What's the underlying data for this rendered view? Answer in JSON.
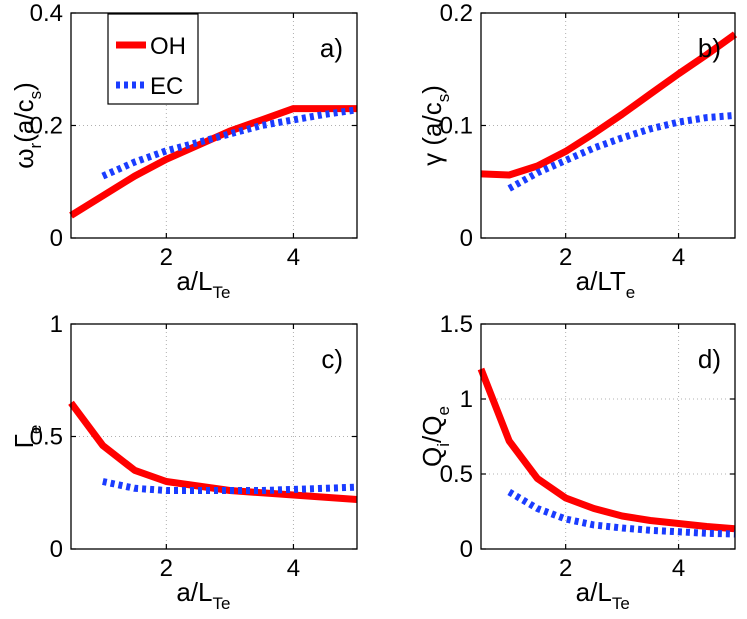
{
  "colors": {
    "OH": "#ff0000",
    "EC": "#1a3cff",
    "grid": "#b0b0b0"
  },
  "legend": {
    "entries": [
      "OH",
      "EC"
    ]
  },
  "chart_data": [
    {
      "type": "line",
      "panel": "a)",
      "xlabel": {
        "main": "a/L",
        "sub": "Te"
      },
      "ylabel": {
        "main": "ω",
        "sub": "r",
        "rest": "(a/c",
        "sub2": "s",
        "end": ")"
      },
      "xlim": [
        0.5,
        5
      ],
      "ylim": [
        0,
        0.4
      ],
      "xticks": [
        2,
        4
      ],
      "yticks": [
        0,
        0.2,
        0.4
      ],
      "xtick_labels": [
        "2",
        "4"
      ],
      "ytick_labels": [
        "0",
        "0.2",
        "0.4"
      ],
      "series": [
        {
          "name": "OH",
          "x": [
            0.5,
            1,
            1.5,
            2,
            2.5,
            3,
            3.5,
            4,
            4.5,
            5
          ],
          "y": [
            0.04,
            0.075,
            0.11,
            0.14,
            0.165,
            0.19,
            0.21,
            0.23,
            0.23,
            0.23
          ]
        },
        {
          "name": "EC",
          "x": [
            1,
            1.5,
            2,
            2.5,
            3,
            3.5,
            4,
            4.5,
            5
          ],
          "y": [
            0.11,
            0.135,
            0.155,
            0.17,
            0.185,
            0.2,
            0.21,
            0.22,
            0.228
          ]
        }
      ]
    },
    {
      "type": "line",
      "panel": "b)",
      "xlabel": {
        "main": "a/LT",
        "sub": "e"
      },
      "ylabel": {
        "main": "γ",
        "sub": "",
        "rest": " (a/c",
        "sub2": "s",
        "end": ")"
      },
      "xlim": [
        0.5,
        5
      ],
      "ylim": [
        0,
        0.2
      ],
      "xticks": [
        2,
        4
      ],
      "yticks": [
        0,
        0.1,
        0.2
      ],
      "xtick_labels": [
        "2",
        "4"
      ],
      "ytick_labels": [
        "0",
        "0.1",
        "0.2"
      ],
      "series": [
        {
          "name": "OH",
          "x": [
            0.5,
            1,
            1.5,
            2,
            2.5,
            3,
            3.5,
            4,
            4.5,
            5
          ],
          "y": [
            0.057,
            0.056,
            0.064,
            0.077,
            0.093,
            0.11,
            0.128,
            0.146,
            0.163,
            0.181
          ]
        },
        {
          "name": "EC",
          "x": [
            1,
            1.5,
            2,
            2.5,
            3,
            3.5,
            4,
            4.5,
            5
          ],
          "y": [
            0.044,
            0.058,
            0.069,
            0.08,
            0.089,
            0.097,
            0.103,
            0.107,
            0.109
          ]
        }
      ]
    },
    {
      "type": "line",
      "panel": "c)",
      "xlabel": {
        "main": "a/L",
        "sub": "Te"
      },
      "ylabel": {
        "main": "Γ",
        "sub": "e",
        "rest": "",
        "sub2": "",
        "end": ""
      },
      "xlim": [
        0.5,
        5
      ],
      "ylim": [
        0,
        1
      ],
      "xticks": [
        2,
        4
      ],
      "yticks": [
        0,
        0.5,
        1
      ],
      "xtick_labels": [
        "2",
        "4"
      ],
      "ytick_labels": [
        "0",
        "0.5",
        "1"
      ],
      "series": [
        {
          "name": "OH",
          "x": [
            0.5,
            1,
            1.5,
            2,
            2.5,
            3,
            3.5,
            4,
            4.5,
            5
          ],
          "y": [
            0.65,
            0.46,
            0.35,
            0.3,
            0.28,
            0.26,
            0.25,
            0.24,
            0.23,
            0.22
          ]
        },
        {
          "name": "EC",
          "x": [
            1,
            1.5,
            2,
            2.5,
            3,
            3.5,
            4,
            4.5,
            5
          ],
          "y": [
            0.3,
            0.27,
            0.26,
            0.26,
            0.26,
            0.26,
            0.265,
            0.27,
            0.275
          ]
        }
      ]
    },
    {
      "type": "line",
      "panel": "d)",
      "xlabel": {
        "main": "a/L",
        "sub": "Te"
      },
      "ylabel": {
        "main": "Q",
        "sub": "i",
        "rest": "/Q",
        "sub2": "e",
        "end": ""
      },
      "xlim": [
        0.5,
        5
      ],
      "ylim": [
        0,
        1.5
      ],
      "xticks": [
        2,
        4
      ],
      "yticks": [
        0,
        0.5,
        1,
        1.5
      ],
      "xtick_labels": [
        "2",
        "4"
      ],
      "ytick_labels": [
        "0",
        "0.5",
        "1",
        "1.5"
      ],
      "series": [
        {
          "name": "OH",
          "x": [
            0.5,
            1,
            1.5,
            2,
            2.5,
            3,
            3.5,
            4,
            4.5,
            5
          ],
          "y": [
            1.2,
            0.72,
            0.47,
            0.34,
            0.27,
            0.22,
            0.19,
            0.17,
            0.15,
            0.135
          ]
        },
        {
          "name": "EC",
          "x": [
            1,
            1.5,
            2,
            2.5,
            3,
            3.5,
            4,
            4.5,
            5
          ],
          "y": [
            0.38,
            0.27,
            0.2,
            0.16,
            0.14,
            0.125,
            0.115,
            0.105,
            0.1
          ]
        }
      ]
    }
  ]
}
